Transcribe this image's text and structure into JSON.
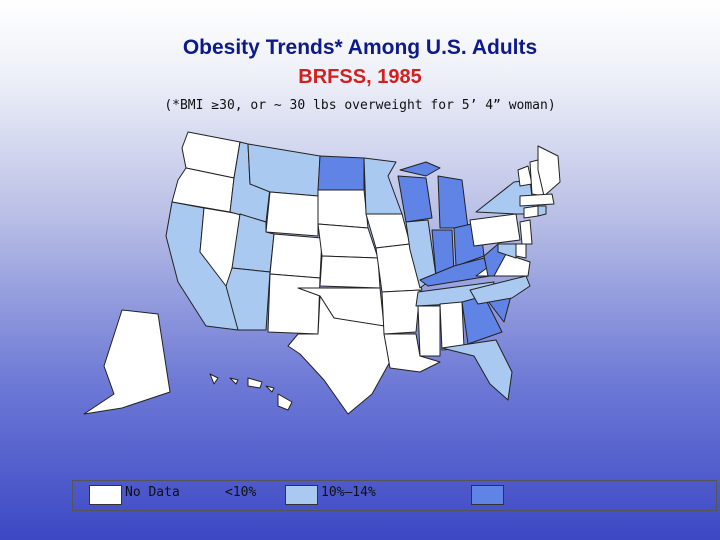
{
  "title": "Obesity Trends* Among U.S. Adults",
  "subtitle": "BRFSS, 1985",
  "note": "(*BMI ≥30, or ~ 30 lbs overweight for 5’ 4” woman)",
  "colors": {
    "no_data": "#ffffff",
    "lt10": "#a9c9f0",
    "p10_14": "#5f84e6",
    "border": "#222222"
  },
  "legend": [
    {
      "label": "No Data",
      "color": "#ffffff"
    },
    {
      "label": "<10%",
      "color": "#a9c9f0"
    },
    {
      "label": "10%–14%",
      "color": "#5f84e6"
    },
    {
      "label": "",
      "color": "#5f84e6"
    }
  ],
  "map_data": {
    "categories": [
      "no_data",
      "lt10",
      "p10_14"
    ],
    "states": {
      "WA": "no_data",
      "OR": "no_data",
      "CA": "lt10",
      "NV": "no_data",
      "ID": "lt10",
      "MT": "lt10",
      "WY": "no_data",
      "UT": "lt10",
      "AZ": "lt10",
      "CO": "no_data",
      "NM": "no_data",
      "ND": "p10_14",
      "SD": "no_data",
      "NE": "no_data",
      "KS": "no_data",
      "OK": "no_data",
      "TX": "no_data",
      "MN": "lt10",
      "IA": "no_data",
      "MO": "no_data",
      "AR": "no_data",
      "LA": "no_data",
      "WI": "p10_14",
      "IL": "lt10",
      "MI": "p10_14",
      "IN": "p10_14",
      "OH": "p10_14",
      "KY": "p10_14",
      "TN": "lt10",
      "MS": "no_data",
      "AL": "no_data",
      "GA": "p10_14",
      "FL": "lt10",
      "SC": "p10_14",
      "NC": "lt10",
      "VA": "no_data",
      "WV": "p10_14",
      "PA": "no_data",
      "NY": "lt10",
      "VT": "no_data",
      "NH": "no_data",
      "ME": "no_data",
      "MA": "no_data",
      "CT": "no_data",
      "RI": "lt10",
      "NJ": "no_data",
      "DE": "no_data",
      "MD": "lt10",
      "AK": "no_data",
      "HI": "no_data"
    }
  }
}
